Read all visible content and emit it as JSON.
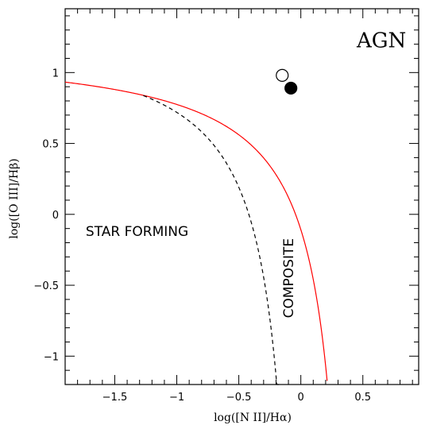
{
  "chart_data": {
    "type": "scatter",
    "xlabel": "log([N II]/Hα)",
    "ylabel": "log([O III]/Hβ)",
    "xlim": [
      -1.9,
      0.95
    ],
    "ylim": [
      -1.2,
      1.45
    ],
    "x_ticks": [
      -1.5,
      -1,
      -0.5,
      0,
      0.5
    ],
    "y_ticks": [
      -1,
      -0.5,
      0,
      0.5,
      1
    ],
    "x_tick_labels": [
      "−1.5",
      "−1",
      "−0.5",
      "0",
      "0.5"
    ],
    "y_tick_labels": [
      "−1",
      "−0.5",
      "0",
      "0.5",
      "1"
    ],
    "grid": false,
    "regions": [
      {
        "label": "AGN",
        "x": 0.65,
        "y": 1.23
      },
      {
        "label": "STAR FORMING",
        "x": -1.32,
        "y": -0.12
      },
      {
        "label": "COMPOSITE",
        "x": -0.1,
        "y": -0.45,
        "rotated": true
      }
    ],
    "curves": [
      {
        "form": "0.61/(x-0.47)+1.19",
        "style": "solid",
        "color": "#ff0000",
        "x_range": [
          -1.9,
          0.212
        ]
      },
      {
        "form": "0.61/(x-0.05)+1.30",
        "style": "dashed",
        "color": "#000000",
        "x_range": [
          -1.27,
          -0.175
        ]
      }
    ],
    "series": [
      {
        "marker": "open-circle",
        "points": [
          [
            -0.15,
            0.98
          ]
        ]
      },
      {
        "marker": "filled-circle",
        "points": [
          [
            -0.08,
            0.89
          ]
        ]
      }
    ]
  }
}
